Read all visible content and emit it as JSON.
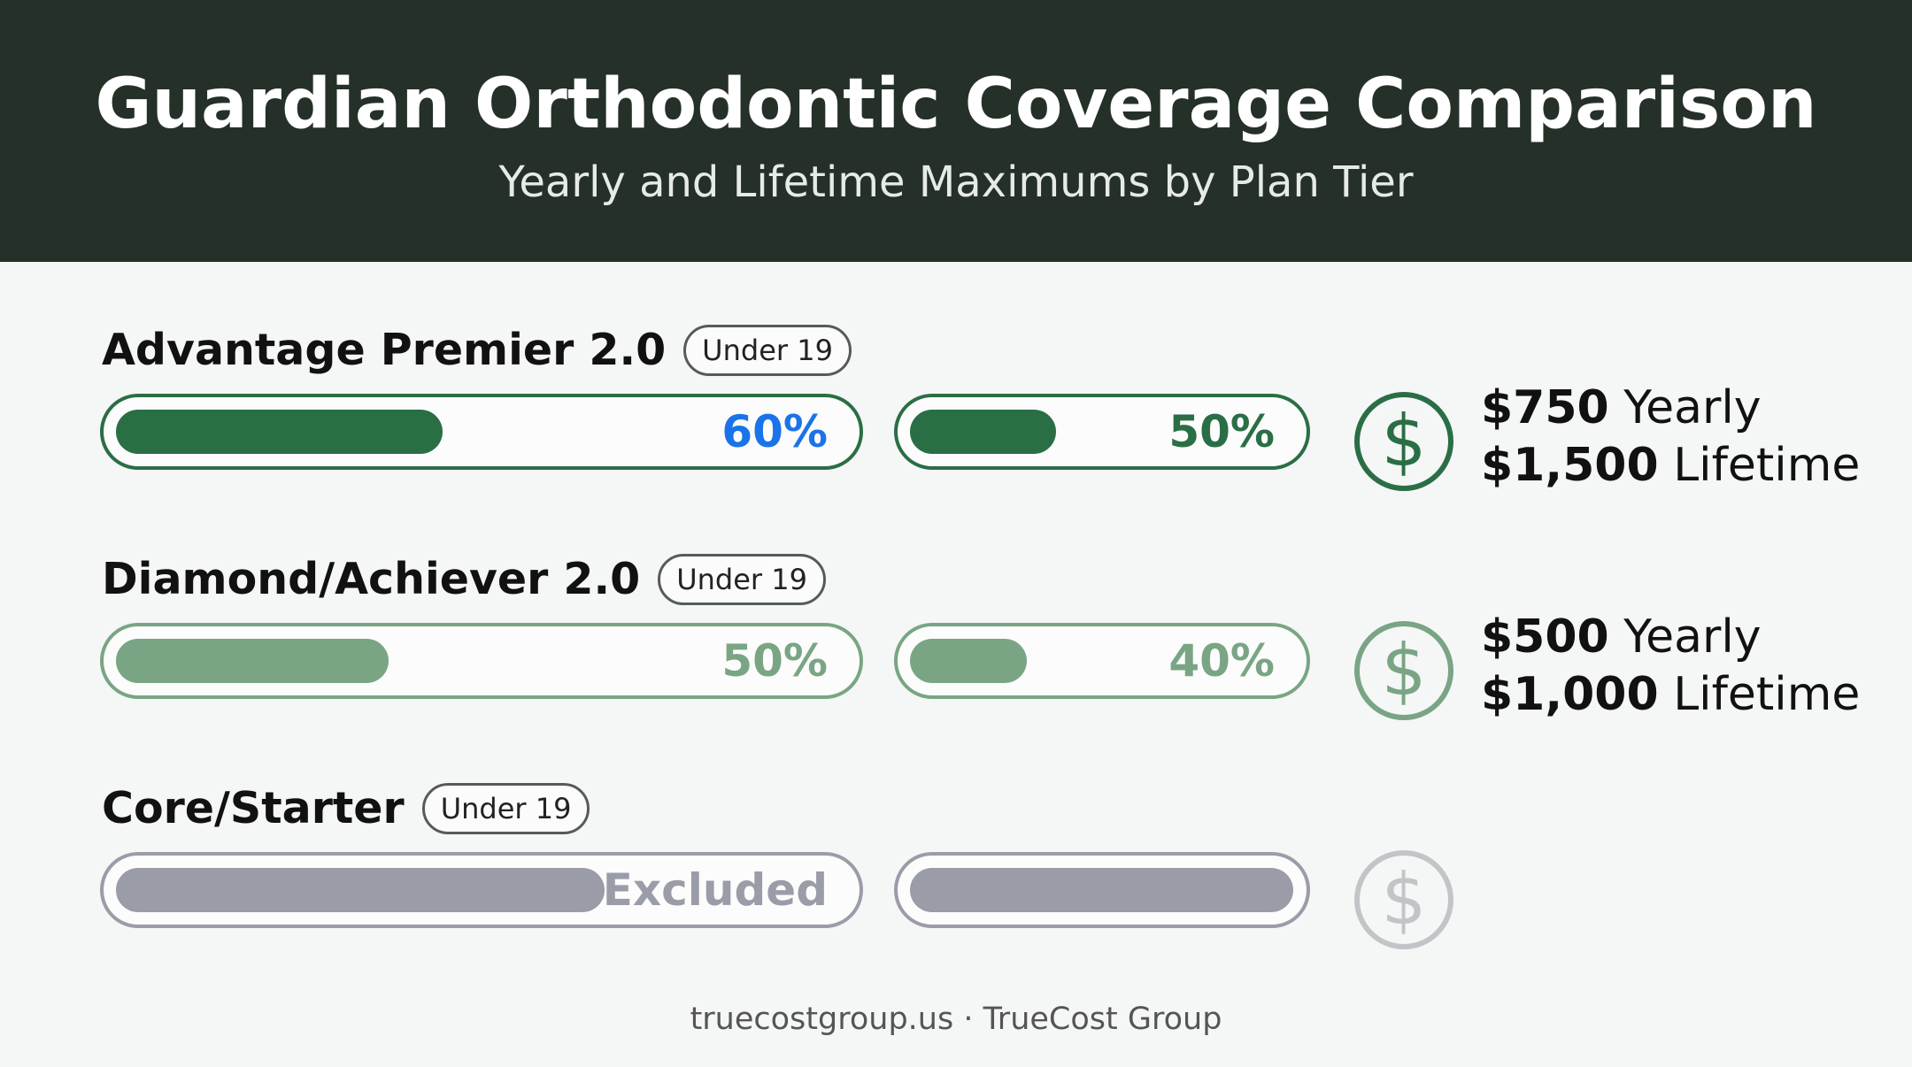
{
  "header": {
    "title": "Guardian Orthodontic Coverage Comparison",
    "subtitle": "Yearly and Lifetime Maximums by Plan Tier"
  },
  "footer": {
    "text": "truecostgroup.us · TrueCost Group"
  },
  "colors": {
    "dark_green": "#2a6e45",
    "light_green": "#79a584",
    "grey": "#9a9ca8",
    "blue": "#1a73e8",
    "header_bg": "#253029"
  },
  "chart_data": {
    "type": "bar",
    "title": "Guardian Orthodontic Coverage Comparison",
    "subtitle": "Yearly and Lifetime Maximums by Plan Tier",
    "tiers": [
      {
        "name": "Advantage Premier 2.0",
        "badge": "Under 19",
        "coverage_a": {
          "value": 60,
          "label": "60%"
        },
        "coverage_b": {
          "value": 50,
          "label": "50%"
        },
        "icon": "dollar-icon",
        "yearly_amount": "$750",
        "yearly_word": "Yearly",
        "lifetime_amount": "$1,500",
        "lifetime_word": "Lifetime"
      },
      {
        "name": "Diamond/Achiever 2.0",
        "badge": "Under 19",
        "coverage_a": {
          "value": 50,
          "label": "50%"
        },
        "coverage_b": {
          "value": 40,
          "label": "40%"
        },
        "icon": "dollar-icon",
        "yearly_amount": "$500",
        "yearly_word": "Yearly",
        "lifetime_amount": "$1,000",
        "lifetime_word": "Lifetime"
      },
      {
        "name": "Core/Starter",
        "badge": "Under 19",
        "coverage_a": {
          "value": null,
          "label": "Excluded"
        },
        "coverage_b": {
          "value": null,
          "label": ""
        },
        "icon": "dollar-icon",
        "excluded": true
      }
    ]
  }
}
